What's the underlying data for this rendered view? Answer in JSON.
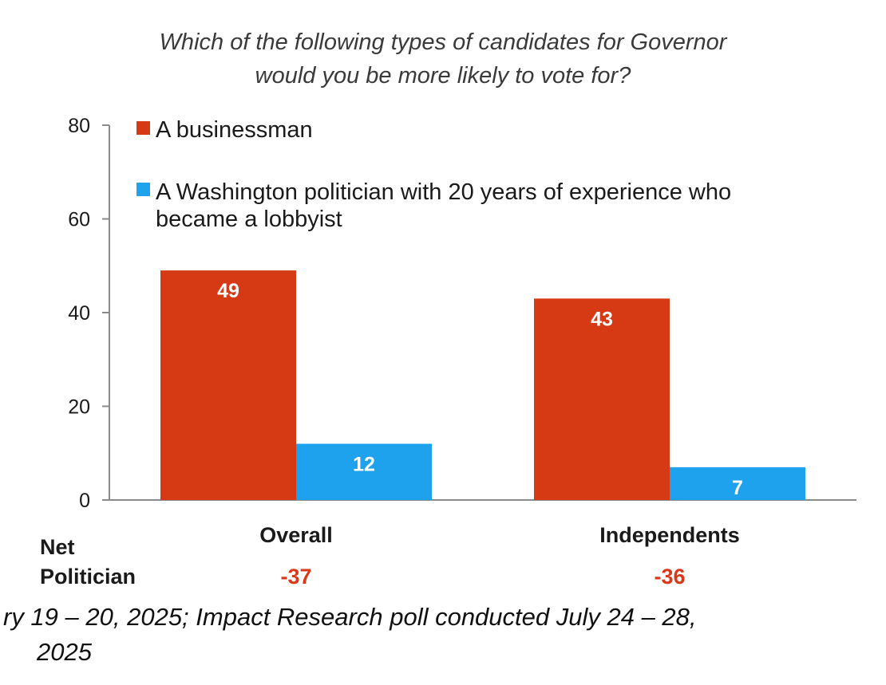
{
  "chart_data": {
    "type": "bar",
    "title_lines": [
      "Which of the following types of candidates for Governor",
      "would you be more likely to vote for?"
    ],
    "categories": [
      "Overall",
      "Independents"
    ],
    "series": [
      {
        "name": "A businessman",
        "name_lines": [
          "A businessman"
        ],
        "color": "#d63a14",
        "values": [
          49,
          43
        ]
      },
      {
        "name": "A Washington politician with 20 years of experience who became a lobbyist",
        "name_lines": [
          "A Washington politician with 20 years of experience who",
          "became a lobbyist"
        ],
        "color": "#1fa2ee",
        "values": [
          12,
          7
        ]
      }
    ],
    "ylim": [
      0,
      80
    ],
    "yticks": [
      0,
      20,
      40,
      60,
      80
    ],
    "legend_position": "top-left",
    "xlabel": "",
    "ylabel": ""
  },
  "net": {
    "label_lines": [
      "Net",
      "Politician"
    ],
    "values": [
      "-37",
      "-36"
    ],
    "color": "#d9391a"
  },
  "source_lines": [
    "ry 19 – 20, 2025; Impact Research poll conducted July 24 – 28,",
    "2025"
  ]
}
